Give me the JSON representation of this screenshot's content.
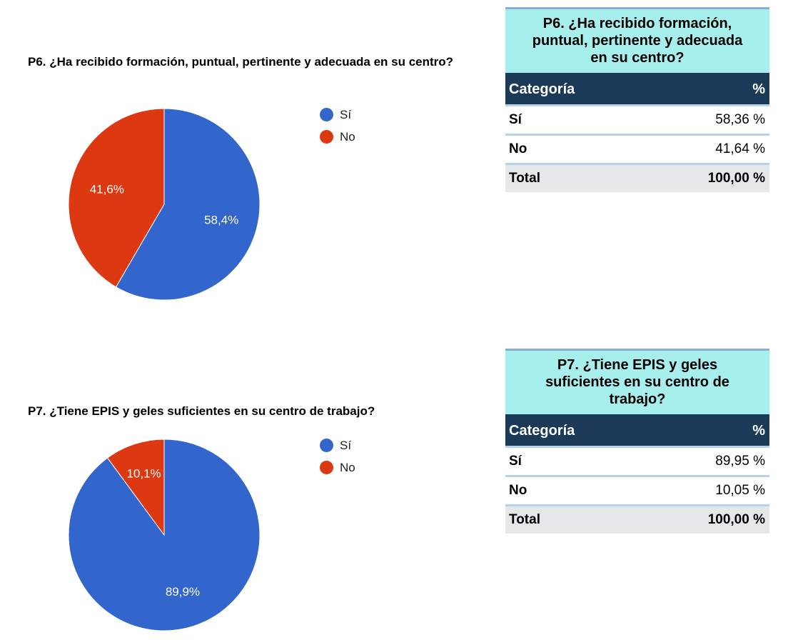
{
  "chart_data": [
    {
      "type": "pie",
      "title": "P6. ¿Ha recibido formación, puntual, pertinente y adecuada en su centro?",
      "categories": [
        "Sí",
        "No"
      ],
      "values": [
        58.4,
        41.6
      ],
      "labels": [
        "58,4%",
        "41,6%"
      ],
      "colors": [
        "#3366cc",
        "#dc3912"
      ],
      "legend_position": "right"
    },
    {
      "type": "pie",
      "title": "P7. ¿Tiene EPIS y geles suficientes en su centro de trabajo?",
      "categories": [
        "Sí",
        "No"
      ],
      "values": [
        89.9,
        10.1
      ],
      "labels": [
        "89,9%",
        "10,1%"
      ],
      "colors": [
        "#3366cc",
        "#dc3912"
      ],
      "legend_position": "right"
    },
    {
      "type": "table",
      "title": "P6. ¿Ha recibido formación, puntual, pertinente y adecuada en su centro?",
      "columns": [
        "Categoría",
        "%"
      ],
      "rows": [
        [
          "Sí",
          "58,36 %"
        ],
        [
          "No",
          "41,64 %"
        ]
      ],
      "total": [
        "Total",
        "100,00 %"
      ]
    },
    {
      "type": "table",
      "title": "P7. ¿Tiene EPIS y geles suficientes en su centro de trabajo?",
      "columns": [
        "Categoría",
        "%"
      ],
      "rows": [
        [
          "Sí",
          "89,95 %"
        ],
        [
          "No",
          "10,05 %"
        ]
      ],
      "total": [
        "Total",
        "100,00 %"
      ]
    }
  ]
}
